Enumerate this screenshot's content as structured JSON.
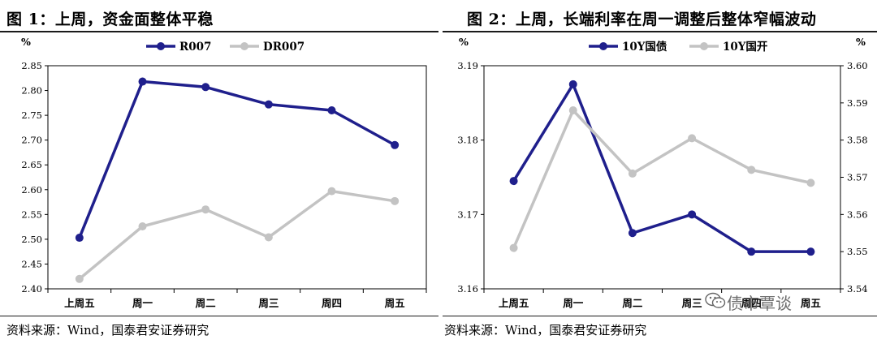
{
  "left": {
    "title": "图 1：上周，资金面整体平稳",
    "source": "资料来源：Wind，国泰君安证券研究"
  },
  "right": {
    "title": "图 2：上周，长端利率在周一调整后整体窄幅波动",
    "source": "资料来源：Wind，国泰君安证券研究"
  },
  "watermark": {
    "text": "债市覃谈",
    "icon": "wechat-icon"
  },
  "colors": {
    "primary": "#1f1f8c",
    "secondary": "#c3c3c3",
    "axis": "#000000"
  },
  "chart_data": [
    {
      "type": "line",
      "ylabel": "%",
      "ylim": [
        2.4,
        2.85
      ],
      "yticks": [
        "2.40",
        "2.45",
        "2.50",
        "2.55",
        "2.60",
        "2.65",
        "2.70",
        "2.75",
        "2.80",
        "2.85"
      ],
      "categories": [
        "上周五",
        "周一",
        "周二",
        "周三",
        "周四",
        "周五"
      ],
      "legend_position": "top-center",
      "grid": false,
      "series": [
        {
          "name": "R007",
          "color": "#1f1f8c",
          "values": [
            2.503,
            2.818,
            2.807,
            2.772,
            2.76,
            2.69
          ]
        },
        {
          "name": "DR007",
          "color": "#c3c3c3",
          "values": [
            2.42,
            2.526,
            2.56,
            2.504,
            2.597,
            2.577
          ]
        }
      ]
    },
    {
      "type": "line",
      "ylabel": "%",
      "y2label": "%",
      "ylim": [
        3.16,
        3.19
      ],
      "yticks": [
        "3.16",
        "3.17",
        "3.18",
        "3.19"
      ],
      "y2lim": [
        3.54,
        3.6
      ],
      "y2ticks": [
        "3.54",
        "3.55",
        "3.56",
        "3.57",
        "3.58",
        "3.59",
        "3.60"
      ],
      "categories": [
        "上周五",
        "周一",
        "周二",
        "周三",
        "周四",
        "周五"
      ],
      "legend_position": "top-center",
      "grid": false,
      "series": [
        {
          "name": "10Y国债",
          "color": "#1f1f8c",
          "axis": "left",
          "values": [
            3.1745,
            3.1875,
            3.1675,
            3.17,
            3.165,
            3.165
          ]
        },
        {
          "name": "10Y国开",
          "color": "#c3c3c3",
          "axis": "right",
          "values": [
            3.551,
            3.588,
            3.571,
            3.5805,
            3.572,
            3.5685
          ]
        }
      ]
    }
  ]
}
